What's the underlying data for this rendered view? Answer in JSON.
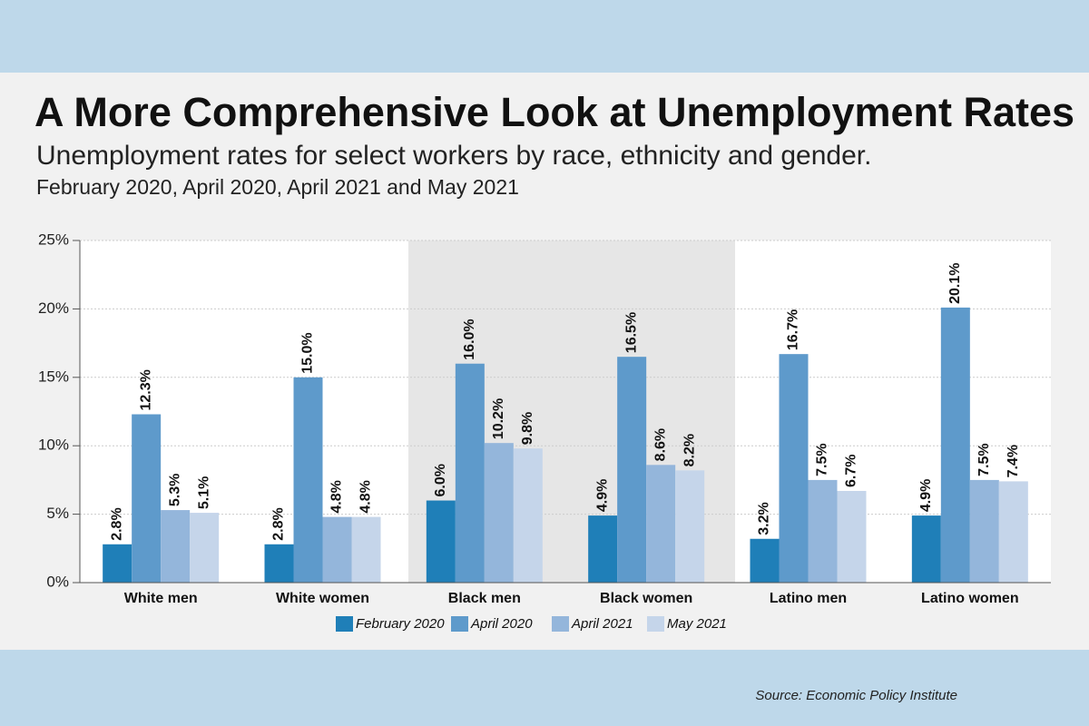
{
  "chart_data": {
    "type": "bar",
    "title": "A More Comprehensive Look at Unemployment Rates",
    "subtitle": "Unemployment rates for select workers by race, ethnicity and gender.",
    "subtitle2": "February 2020, April 2020, April 2021 and May 2021",
    "source": "Source: Economic Policy Institute",
    "categories": [
      "White men",
      "White women",
      "Black men",
      "Black women",
      "Latino men",
      "Latino women"
    ],
    "series": [
      {
        "name": "February 2020",
        "color": "#1f7fb8",
        "values": [
          2.8,
          2.8,
          6.0,
          4.9,
          3.2,
          4.9
        ],
        "value_labels": [
          "2.8%",
          "2.8%",
          "6.0%",
          "4.9%",
          "3.2%",
          "4.9%"
        ]
      },
      {
        "name": "April 2020",
        "color": "#5e9acb",
        "values": [
          12.3,
          15.0,
          16.0,
          16.5,
          16.7,
          20.1
        ],
        "value_labels": [
          "12.3%",
          "15.0%",
          "16.0%",
          "16.5%",
          "16.7%",
          "20.1%"
        ]
      },
      {
        "name": "April 2021",
        "color": "#94b6db",
        "values": [
          5.3,
          4.8,
          10.2,
          8.6,
          7.5,
          7.5
        ],
        "value_labels": [
          "5.3%",
          "4.8%",
          "10.2%",
          "8.6%",
          "7.5%",
          "7.5%"
        ]
      },
      {
        "name": "May 2021",
        "color": "#c5d5ea",
        "values": [
          5.1,
          4.8,
          9.8,
          8.2,
          6.7,
          7.4
        ],
        "value_labels": [
          "5.1%",
          "4.8%",
          "9.8%",
          "8.2%",
          "6.7%",
          "7.4%"
        ]
      }
    ],
    "ylim": [
      0,
      25
    ],
    "yticks": [
      {
        "value": 0,
        "label": "0%"
      },
      {
        "value": 5,
        "label": "5%"
      },
      {
        "value": 10,
        "label": "10%"
      },
      {
        "value": 15,
        "label": "15%"
      },
      {
        "value": 20,
        "label": "20%"
      },
      {
        "value": 25,
        "label": "25%"
      }
    ],
    "grid": true
  }
}
